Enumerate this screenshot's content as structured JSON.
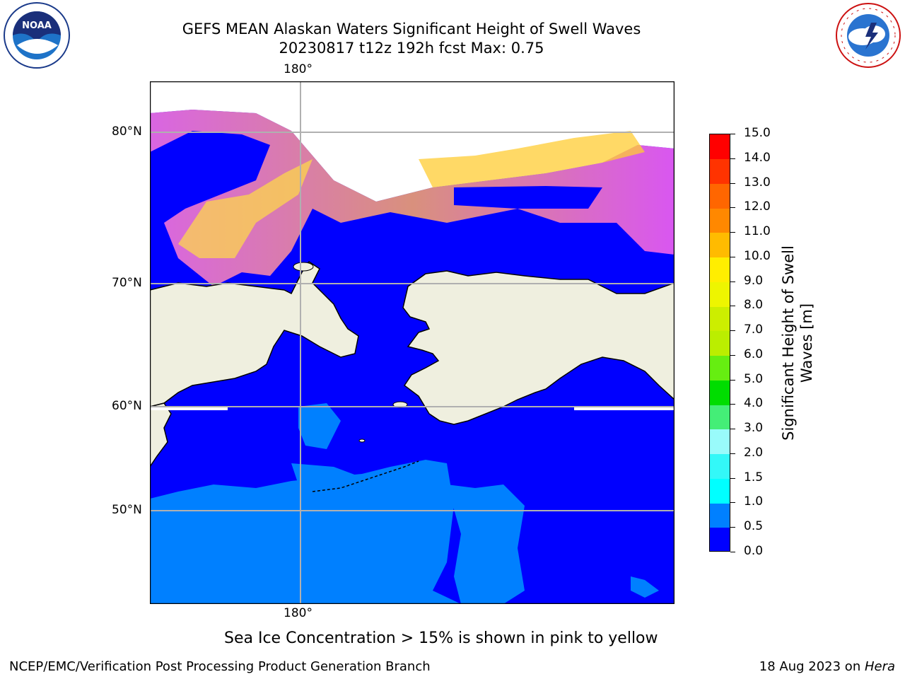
{
  "header": {
    "title_line1": "GEFS MEAN Alaskan Waters Significant Height of Swell Waves",
    "title_line2": "20230817 t12z 192h fcst   Max: 0.75"
  },
  "logos": {
    "noaa": {
      "text": "NOAA"
    },
    "nws": {
      "text": "NATIONAL WEATHER SERVICE"
    }
  },
  "map": {
    "lon_labels": [
      "180°",
      "180°"
    ],
    "lat_labels": [
      "80°N",
      "70°N",
      "60°N",
      "50°N"
    ],
    "colors": {
      "ocean_low": "#0000ff",
      "ocean_mid": "#0080ff",
      "land": "#efefdf",
      "ice_pink": "#ff66ee",
      "ice_yellow": "#ffdd33",
      "grid": "#b0b0b0"
    }
  },
  "colorbar": {
    "label": "Significant Height of Swell Waves [m]",
    "ticks": [
      "0.0",
      "0.5",
      "1.0",
      "1.5",
      "2.0",
      "3.0",
      "4.0",
      "5.0",
      "6.0",
      "7.0",
      "8.0",
      "9.0",
      "10.0",
      "11.0",
      "12.0",
      "13.0",
      "14.0",
      "15.0"
    ],
    "colors": [
      "#0000ff",
      "#0080ff",
      "#00ffff",
      "#33f8f8",
      "#99fbfb",
      "#44ee77",
      "#00dd00",
      "#66ee11",
      "#bbee00",
      "#ccee00",
      "#eef500",
      "#ffee00",
      "#ffbb00",
      "#ff8800",
      "#ff6600",
      "#ff3300",
      "#ff0000"
    ]
  },
  "note": "Sea Ice Concentration > 15% is shown in pink to yellow",
  "footer": {
    "left": "NCEP/EMC/Verification Post Processing Product Generation Branch",
    "right_prefix": "18 Aug 2023 on ",
    "right_italic": "Hera"
  }
}
